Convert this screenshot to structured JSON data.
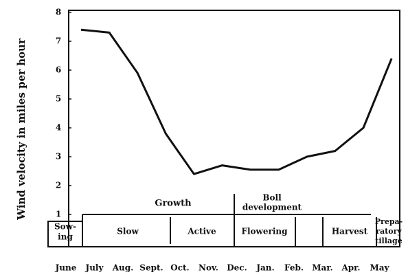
{
  "chart_data": {
    "type": "line",
    "y_label": "Wind velocity in miles per hour",
    "categories": [
      "June",
      "July",
      "Aug.",
      "Sept.",
      "Oct.",
      "Nov.",
      "Dec.",
      "Jan.",
      "Feb.",
      "Mar.",
      "Apr.",
      "May"
    ],
    "values": [
      7.4,
      7.3,
      5.9,
      3.8,
      2.4,
      2.7,
      2.55,
      2.55,
      3.0,
      3.2,
      4.0,
      6.4
    ],
    "color": "#111111",
    "ylim": [
      0,
      8
    ],
    "yticks": [
      1,
      2,
      3,
      4,
      5,
      6,
      7,
      8
    ],
    "groups": {
      "growth": "Growth",
      "boll": [
        "Boll",
        "development"
      ]
    },
    "stages": {
      "sowing": [
        "Sow-",
        "ing"
      ],
      "slow": "Slow",
      "active": "Active",
      "flowering": "Flowering",
      "harvest": "Harvest",
      "tillage": [
        "Prepa-",
        "ratory",
        "tillage"
      ]
    }
  }
}
